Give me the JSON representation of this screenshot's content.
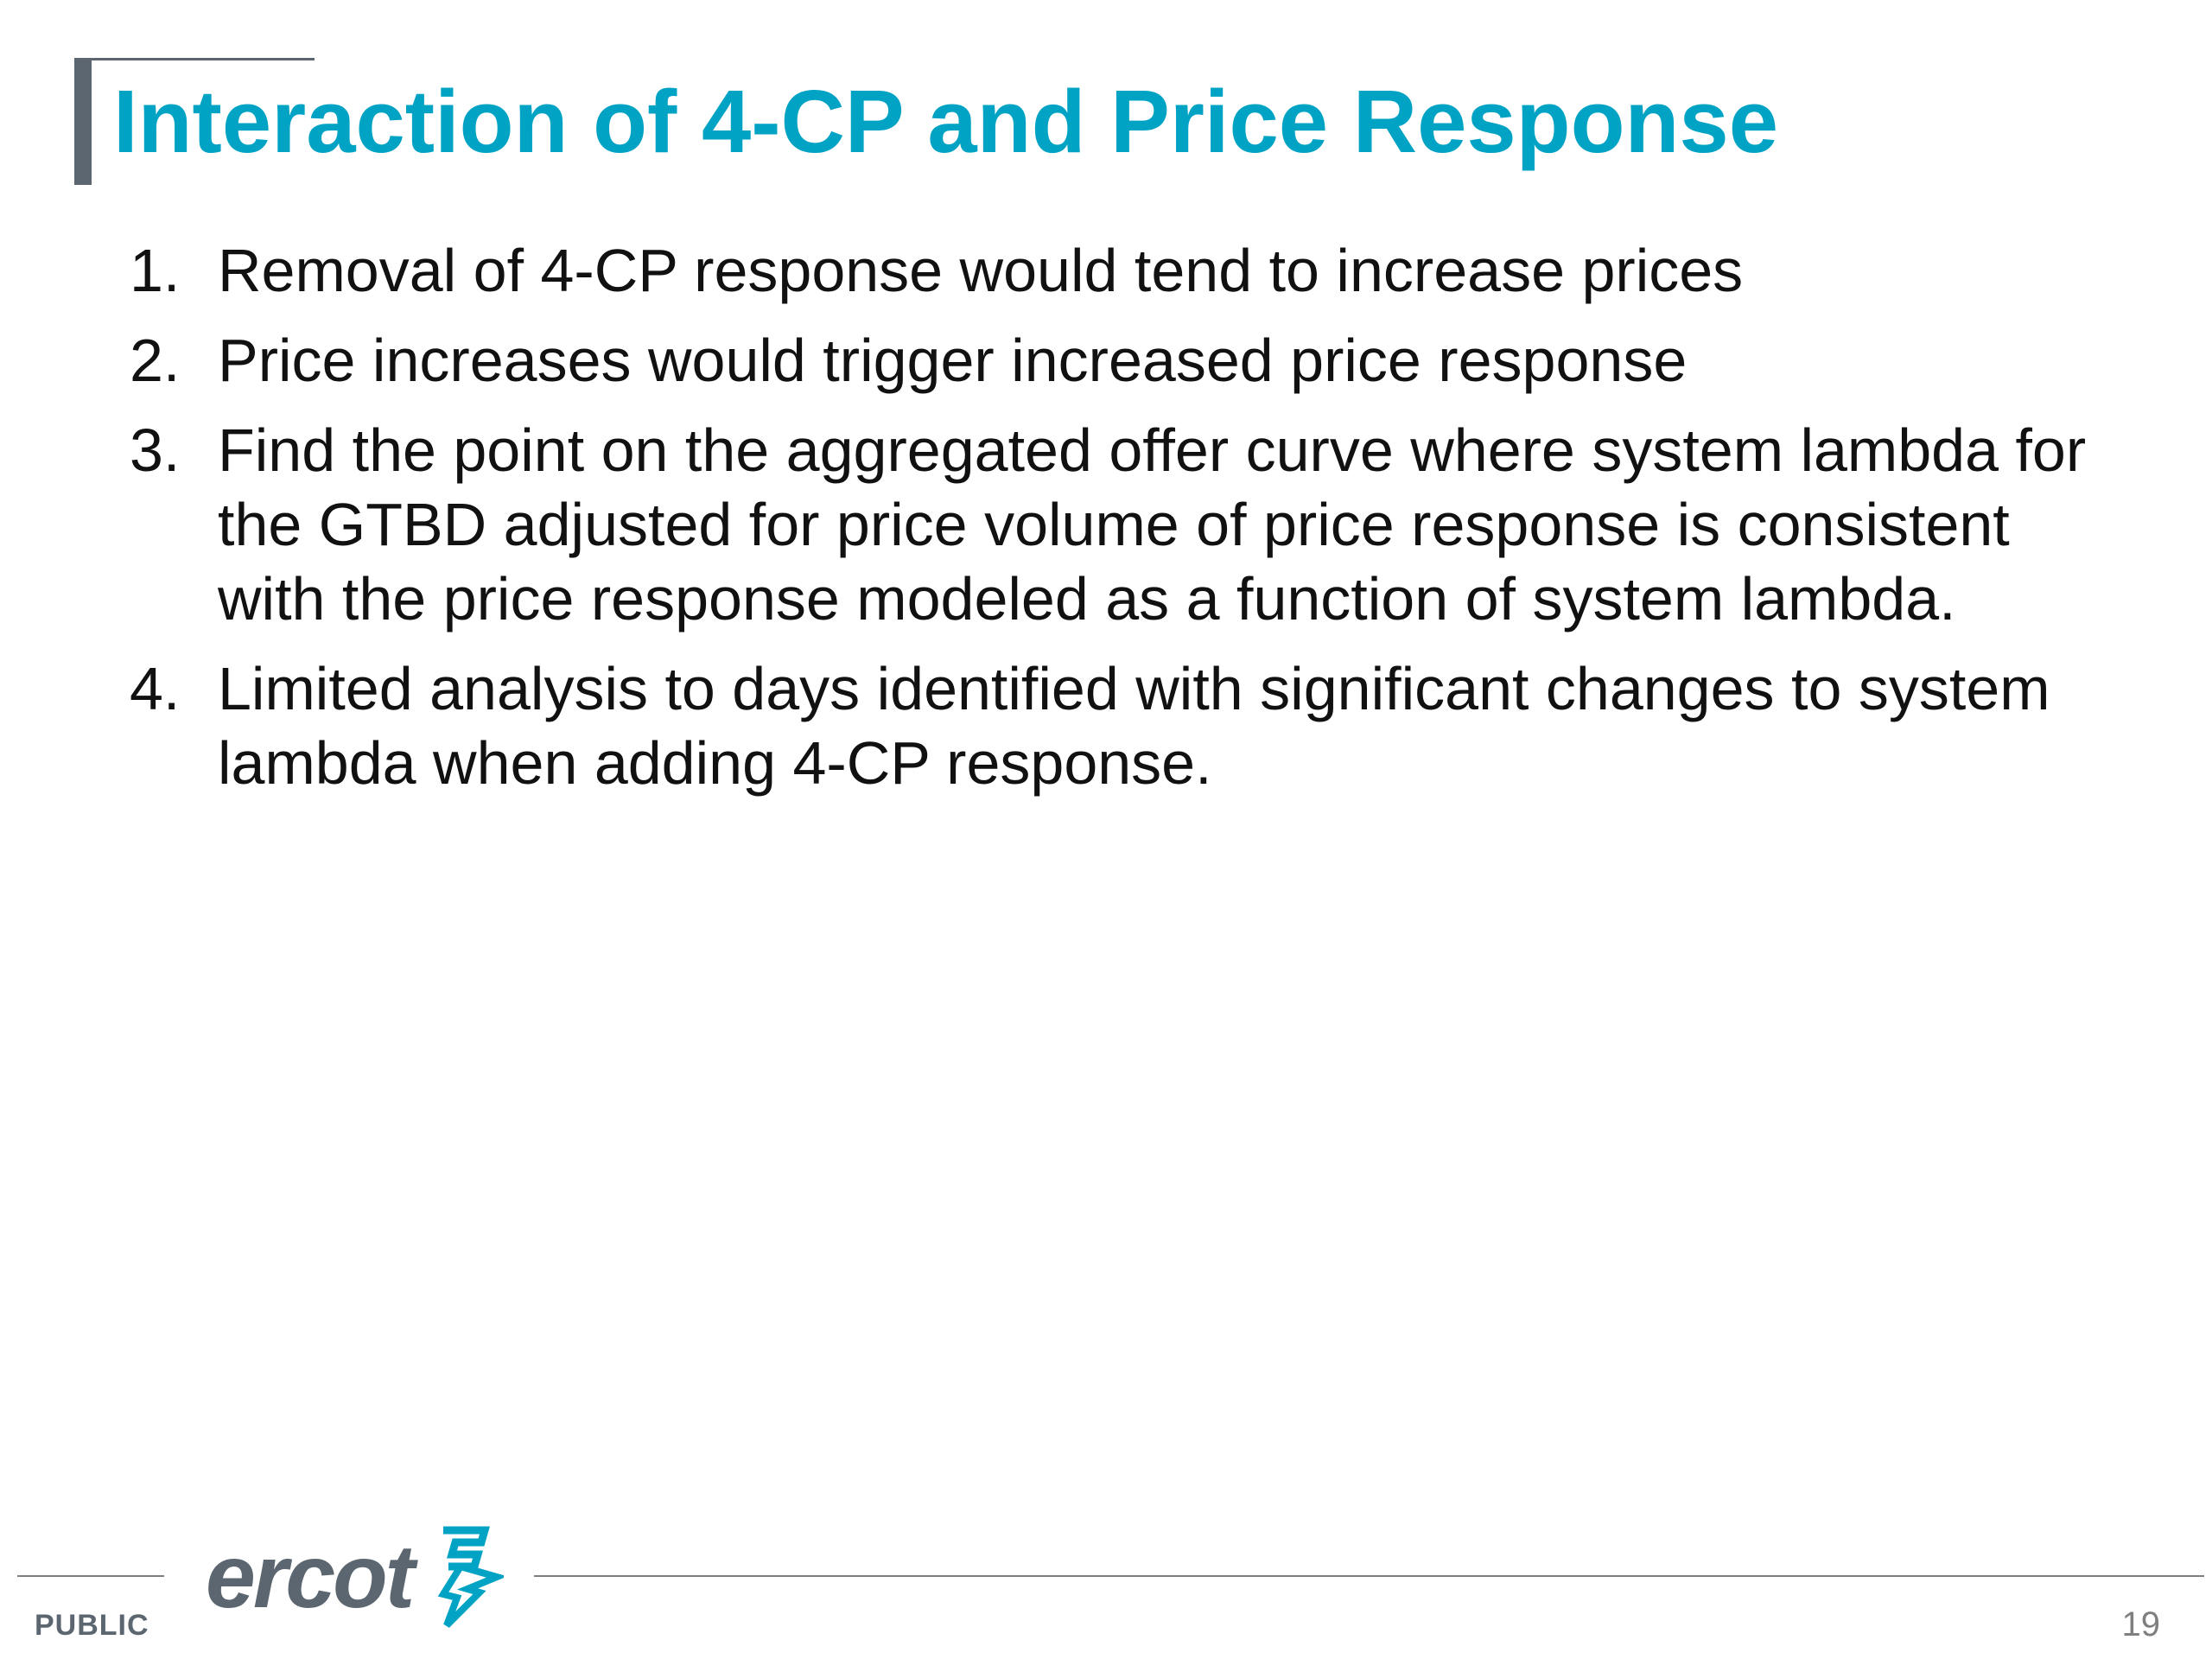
{
  "slide": {
    "title": "Interaction of 4-CP and Price Response",
    "items": [
      {
        "num": "1.",
        "text": "Removal of 4-CP response would tend to increase prices"
      },
      {
        "num": "2.",
        "text": "Price increases would trigger increased price response"
      },
      {
        "num": "3.",
        "text": "Find the point on the aggregated offer curve where system lambda for the GTBD adjusted for price volume of price response is consistent with the price response modeled as a function of system lambda."
      },
      {
        "num": "4.",
        "text": "Limited analysis to days identified with significant changes to system lambda when adding 4-CP response."
      }
    ]
  },
  "footer": {
    "classification": "PUBLIC",
    "logo_text": "ercot",
    "page_number": "19"
  },
  "colors": {
    "title": "#00a3c4",
    "accent_bar": "#5b6670",
    "body_text": "#111111",
    "logo": "#5b6670",
    "logo_mark": "#00a3c4",
    "footer_rule": "#7f7f7f"
  }
}
